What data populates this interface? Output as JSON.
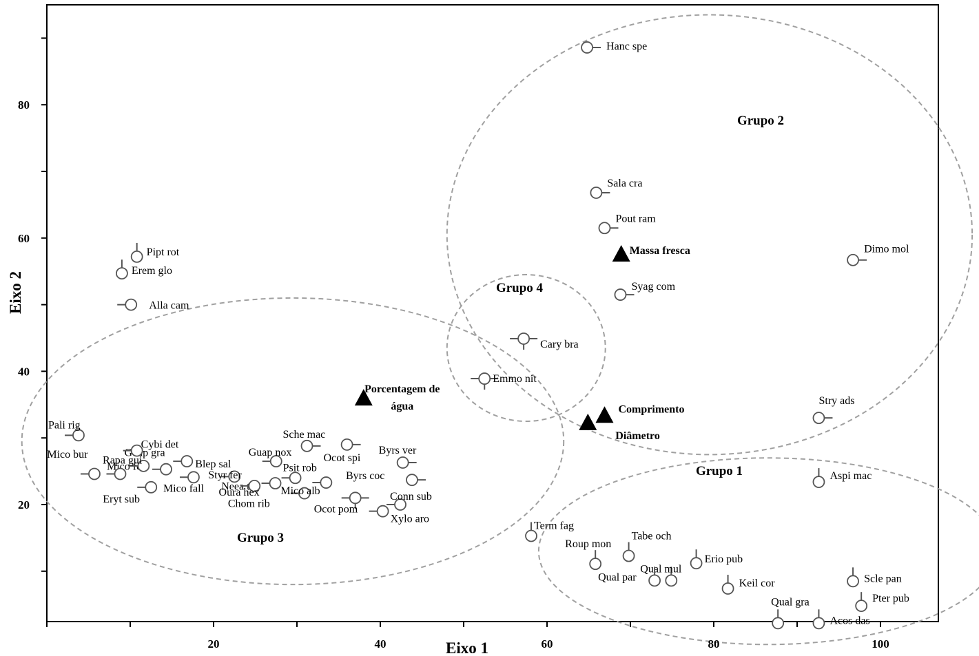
{
  "chart_data": {
    "type": "scatter",
    "xlabel": "Eixo 1",
    "ylabel": "Eixo 2",
    "xlim": [
      0,
      107
    ],
    "ylim": [
      0,
      92
    ],
    "x_ticks": [
      20,
      40,
      60,
      80,
      100
    ],
    "y_ticks": [
      20,
      40,
      60,
      80
    ],
    "grid": false,
    "species": [
      {
        "label": "Hanc spe",
        "x": 64.8,
        "y": 88.6,
        "whisker": "right"
      },
      {
        "label": "Sala cra",
        "x": 65.9,
        "y": 66.8,
        "whisker": "right"
      },
      {
        "label": "Pout ram",
        "x": 66.9,
        "y": 61.5,
        "whisker": "right"
      },
      {
        "label": "Dimo mol",
        "x": 96.7,
        "y": 56.7,
        "whisker": "right"
      },
      {
        "label": "Syag com",
        "x": 68.8,
        "y": 51.5,
        "whisker": "right"
      },
      {
        "label": "Cary  bra",
        "x": 57.2,
        "y": 44.9,
        "whisker": "cross"
      },
      {
        "label": "Emmo nit",
        "x": 52.5,
        "y": 38.9,
        "whisker": "cross"
      },
      {
        "label": "Stry ads",
        "x": 92.6,
        "y": 33.0,
        "whisker": "right"
      },
      {
        "label": "Aspi mac",
        "x": 92.6,
        "y": 23.4,
        "whisker": "up"
      },
      {
        "label": "Pipt rot",
        "x": 10.8,
        "y": 57.2,
        "whisker": "up"
      },
      {
        "label": "Erem glo",
        "x": 9.0,
        "y": 54.7,
        "whisker": "up"
      },
      {
        "label": "Alla cam",
        "x": 10.1,
        "y": 50.0,
        "whisker": "left"
      },
      {
        "label": "Pali rig",
        "x": 3.8,
        "y": 30.4,
        "whisker": "left"
      },
      {
        "label": "Mico fer",
        "x": 5.7,
        "y": 24.6,
        "whisker": "left"
      },
      {
        "label": "Guap gra",
        "x": 8.8,
        "y": 24.6,
        "whisker": "left"
      },
      {
        "label": "Cybi det",
        "x": 10.8,
        "y": 28.1,
        "whisker": "left"
      },
      {
        "label": "Mico bur",
        "x": 11.6,
        "y": 25.8,
        "whisker": "left"
      },
      {
        "label": "Rapa gui",
        "x": 14.3,
        "y": 25.3,
        "whisker": "left"
      },
      {
        "label": "Blep sal",
        "x": 16.8,
        "y": 26.5,
        "whisker": "left"
      },
      {
        "label": "Eryt sub",
        "x": 12.5,
        "y": 22.6,
        "whisker": "left"
      },
      {
        "label": "Mico fall",
        "x": 17.6,
        "y": 24.1,
        "whisker": "left"
      },
      {
        "label": "Neea the",
        "x": 22.5,
        "y": 24.2,
        "whisker": "left"
      },
      {
        "label": "Guap nox",
        "x": 27.5,
        "y": 26.5,
        "whisker": "left"
      },
      {
        "label": "Styr fer",
        "x": 24.9,
        "y": 22.8,
        "whisker": "left"
      },
      {
        "label": "Oura hex",
        "x": 27.4,
        "y": 23.2,
        "whisker": "left"
      },
      {
        "label": "Psit rob",
        "x": 29.8,
        "y": 24.0,
        "whisker": "left"
      },
      {
        "label": "Chom rib",
        "x": 30.9,
        "y": 21.7,
        "whisker": "left"
      },
      {
        "label": "Sche mac",
        "x": 31.2,
        "y": 28.8,
        "whisker": "right"
      },
      {
        "label": "Ocot spi",
        "x": 36.0,
        "y": 29.0,
        "whisker": "right"
      },
      {
        "label": "Mico alb",
        "x": 33.5,
        "y": 23.3,
        "whisker": "left"
      },
      {
        "label": "Byrs ver",
        "x": 42.7,
        "y": 26.3,
        "whisker": "right"
      },
      {
        "label": "Byrs coc",
        "x": 43.8,
        "y": 23.7,
        "whisker": "right"
      },
      {
        "label": "Ocot pom",
        "x": 37.0,
        "y": 21.0,
        "whisker": "cross"
      },
      {
        "label": "Conn sub",
        "x": 42.4,
        "y": 20.0,
        "whisker": "left"
      },
      {
        "label": "Xylo aro",
        "x": 40.3,
        "y": 19.0,
        "whisker": "left"
      },
      {
        "label": "Term fag",
        "x": 58.1,
        "y": 15.3,
        "whisker": "up"
      },
      {
        "label": "Roup mon",
        "x": 65.8,
        "y": 11.1,
        "whisker": "up"
      },
      {
        "label": "Tabe och",
        "x": 69.8,
        "y": 12.3,
        "whisker": "up"
      },
      {
        "label": "Qual mul",
        "x": 74.9,
        "y": 8.6,
        "whisker": "up"
      },
      {
        "label": "Qual par",
        "x": 72.9,
        "y": 8.6,
        "whisker": "up"
      },
      {
        "label": "Erio pub",
        "x": 77.9,
        "y": 11.2,
        "whisker": "up"
      },
      {
        "label": "Keil  cor",
        "x": 81.7,
        "y": 7.4,
        "whisker": "up"
      },
      {
        "label": "Qual gra",
        "x": 87.7,
        "y": 2.2,
        "whisker": "up"
      },
      {
        "label": "Acos das",
        "x": 92.6,
        "y": 2.2,
        "whisker": "up"
      },
      {
        "label": "Scle pan",
        "x": 96.7,
        "y": 8.5,
        "whisker": "up"
      },
      {
        "label": "Pter pub",
        "x": 97.7,
        "y": 4.8,
        "whisker": "up"
      }
    ],
    "variables": [
      {
        "label": "Massa fresca",
        "x": 68.9,
        "y": 57.6
      },
      {
        "label": "Porcentagem de água",
        "x": 38.0,
        "y": 36.0
      },
      {
        "label": "Comprimento",
        "x": 66.9,
        "y": 33.4
      },
      {
        "label": "Diâmetro",
        "x": 64.9,
        "y": 32.3
      }
    ],
    "groups": [
      {
        "label": "Grupo 1",
        "cx": 86.5,
        "cy": 13.0,
        "rx": 27.5,
        "ry": 14.0
      },
      {
        "label": "Grupo 2",
        "cx": 79.5,
        "cy": 60.5,
        "rx": 31.5,
        "ry": 33.0
      },
      {
        "label": "Grupo 3",
        "cx": 29.5,
        "cy": 29.5,
        "rx": 32.5,
        "ry": 21.5
      },
      {
        "label": "Grupo 4",
        "cx": 57.5,
        "cy": 43.5,
        "rx": 9.5,
        "ry": 11.0
      }
    ]
  }
}
